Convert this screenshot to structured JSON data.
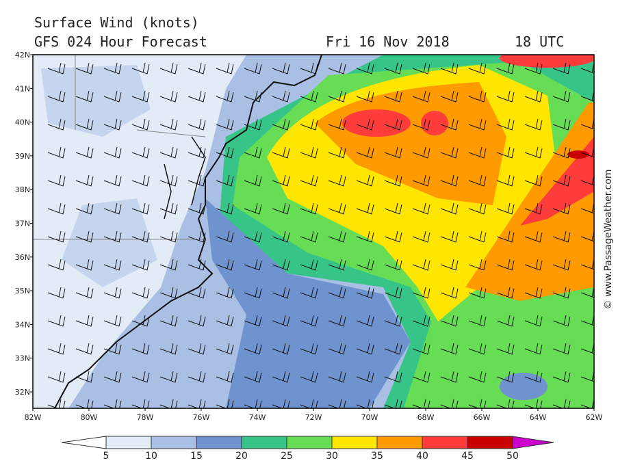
{
  "header": {
    "title": "Surface Wind (knots)",
    "model": "GFS 024 Hour Forecast",
    "date": "Fri 16 Nov 2018",
    "time": "18 UTC"
  },
  "map": {
    "lat_labels": [
      "42N",
      "41N",
      "40N",
      "39N",
      "38N",
      "37N",
      "36N",
      "35N",
      "34N",
      "33N",
      "32N"
    ],
    "lon_labels": [
      "82W",
      "80W",
      "78W",
      "76W",
      "74W",
      "72W",
      "70W",
      "68W",
      "66W",
      "64W",
      "62W"
    ]
  },
  "colorbar": {
    "ticks": [
      5,
      10,
      15,
      20,
      25,
      30,
      35,
      40,
      45,
      50
    ],
    "colors": [
      "#ffffff",
      "#e3ebf7",
      "#a9bfe3",
      "#6f93cf",
      "#37c489",
      "#66dd55",
      "#ffe600",
      "#ff9a00",
      "#ff3c3c",
      "#c80000",
      "#cc00cc"
    ]
  },
  "watermark": "© www.PassageWeather.com"
}
